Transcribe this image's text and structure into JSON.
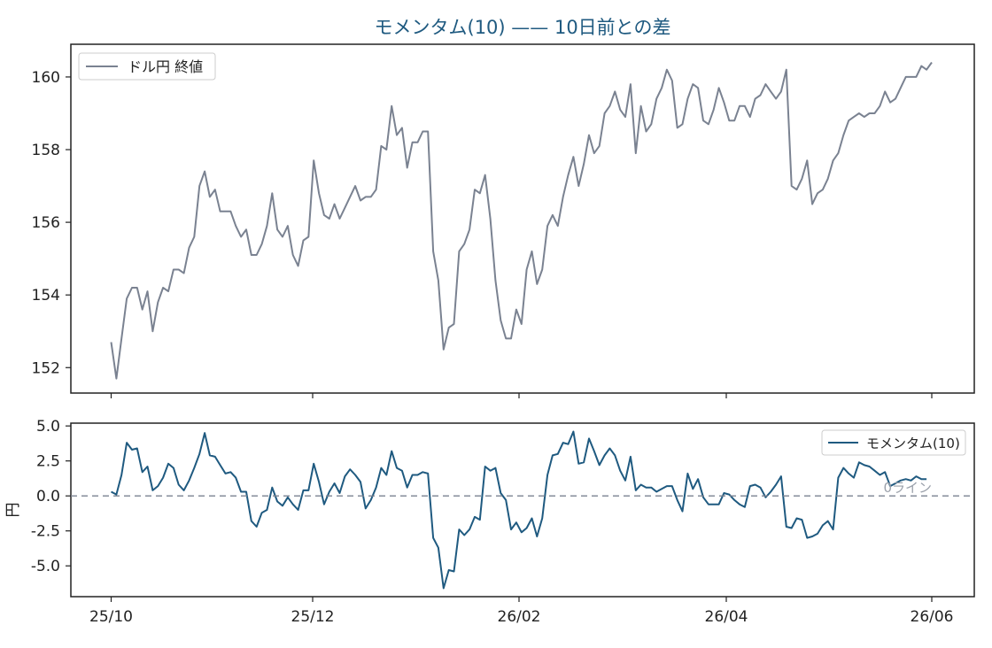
{
  "chart_data": {
    "type": "line",
    "title": "モメンタム(10) —— 10日前との差",
    "colors": {
      "price": "#7a8291",
      "momentum": "#1f5a80",
      "zero": "#7a8291",
      "title": "#1f5a80"
    },
    "x_ticks": [
      "25/10",
      "25/12",
      "26/02",
      "26/04",
      "26/06"
    ],
    "price_panel": {
      "legend": "ドル円 終値",
      "legend_position": "upper-left",
      "ylim": [
        151.3,
        160.9
      ],
      "y_ticks": [
        152,
        154,
        156,
        158,
        160
      ],
      "values": [
        152.7,
        151.7,
        152.8,
        153.9,
        154.2,
        154.2,
        153.6,
        154.1,
        153.0,
        153.8,
        154.2,
        154.1,
        154.7,
        154.7,
        154.6,
        155.3,
        155.6,
        157.0,
        157.4,
        156.7,
        156.9,
        156.3,
        156.3,
        156.3,
        155.9,
        155.6,
        155.8,
        155.1,
        155.1,
        155.4,
        155.9,
        156.8,
        155.8,
        155.6,
        155.9,
        155.1,
        154.8,
        155.5,
        155.6,
        157.7,
        156.8,
        156.2,
        156.1,
        156.5,
        156.1,
        156.4,
        156.7,
        157.0,
        156.6,
        156.7,
        156.7,
        156.9,
        158.1,
        158.0,
        159.2,
        158.4,
        158.6,
        157.5,
        158.2,
        158.2,
        158.5,
        158.5,
        155.2,
        154.4,
        152.5,
        153.1,
        153.2,
        155.2,
        155.4,
        155.8,
        156.9,
        156.8,
        157.3,
        156.1,
        154.4,
        153.3,
        152.8,
        152.8,
        153.6,
        153.2,
        154.7,
        155.2,
        154.3,
        154.7,
        155.9,
        156.2,
        155.9,
        156.7,
        157.3,
        157.8,
        157.0,
        157.6,
        158.4,
        157.9,
        158.1,
        159.0,
        159.2,
        159.6,
        159.1,
        158.9,
        159.8,
        157.9,
        159.2,
        158.5,
        158.7,
        159.4,
        159.7,
        160.2,
        159.9,
        158.6,
        158.7,
        159.4,
        159.8,
        159.7,
        158.8,
        158.7,
        159.1,
        159.7,
        159.3,
        158.8,
        158.8,
        159.2,
        159.2,
        158.9,
        159.4,
        159.5,
        159.8,
        159.6,
        159.4,
        159.6,
        160.2,
        157.0,
        156.9,
        157.2,
        157.7,
        156.5,
        156.8,
        156.9,
        157.2,
        157.7,
        157.9,
        158.4,
        158.8,
        158.9,
        159.0,
        158.9,
        159.0,
        159.0,
        159.2,
        159.6,
        159.3,
        159.4,
        159.7,
        160.0,
        160.0,
        160.0,
        160.3,
        160.2,
        160.4
      ]
    },
    "momentum_panel": {
      "legend": "モメンタム(10)",
      "legend_position": "upper-right",
      "ylabel": "円",
      "ylim": [
        -7.2,
        5.2
      ],
      "y_ticks": [
        5.0,
        2.5,
        0.0,
        -2.5,
        -5.0
      ],
      "y_tick_labels": [
        "5.0",
        "2.5",
        "0.0",
        "-2.5",
        "-5.0"
      ],
      "reference_line": {
        "value": 0,
        "label": "0ライン"
      },
      "values": [
        0.3,
        0.1,
        1.5,
        3.8,
        3.3,
        3.4,
        1.7,
        2.1,
        0.4,
        0.7,
        1.3,
        2.3,
        2.0,
        0.8,
        0.4,
        1.1,
        2.0,
        3.0,
        4.5,
        2.9,
        2.8,
        2.2,
        1.6,
        1.7,
        1.3,
        0.3,
        0.3,
        -1.8,
        -2.2,
        -1.2,
        -1.0,
        0.6,
        -0.4,
        -0.7,
        -0.1,
        -0.6,
        -1.0,
        0.4,
        0.4,
        2.3,
        1.0,
        -0.6,
        0.3,
        0.9,
        0.2,
        1.4,
        1.9,
        1.5,
        1.0,
        -0.9,
        -0.3,
        0.6,
        2.0,
        1.5,
        3.2,
        2.0,
        1.8,
        0.6,
        1.5,
        1.5,
        1.7,
        1.6,
        -3.0,
        -3.7,
        -6.6,
        -5.3,
        -5.4,
        -2.4,
        -2.8,
        -2.4,
        -1.5,
        -1.7,
        2.1,
        1.8,
        2.0,
        0.2,
        -0.3,
        -2.4,
        -1.9,
        -2.6,
        -2.3,
        -1.6,
        -2.9,
        -1.6,
        1.5,
        2.9,
        3.0,
        3.8,
        3.7,
        4.6,
        2.3,
        2.4,
        4.1,
        3.2,
        2.2,
        2.9,
        3.4,
        2.9,
        1.8,
        1.1,
        2.8,
        0.4,
        0.8,
        0.6,
        0.6,
        0.3,
        0.5,
        0.7,
        0.7,
        -0.3,
        -1.1,
        1.6,
        0.5,
        1.2,
        -0.1,
        -0.6,
        -0.6,
        -0.6,
        0.2,
        0.1,
        -0.3,
        -0.6,
        -0.8,
        0.7,
        0.8,
        0.6,
        -0.1,
        0.3,
        0.8,
        1.4,
        -2.2,
        -2.3,
        -1.6,
        -1.7,
        -3.0,
        -2.9,
        -2.7,
        -2.1,
        -1.8,
        -2.4,
        1.3,
        2.0,
        1.6,
        1.3,
        2.4,
        2.2,
        2.1,
        1.8,
        1.5,
        1.7,
        0.7,
        0.9,
        1.1,
        1.2,
        1.1,
        1.4,
        1.2,
        1.2
      ]
    }
  }
}
